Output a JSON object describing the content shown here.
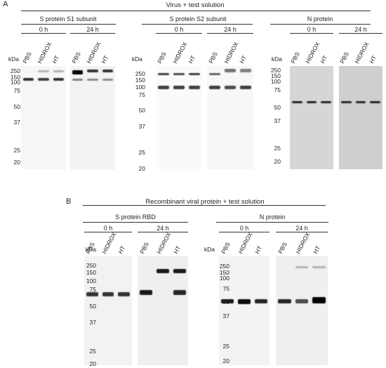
{
  "figure": {
    "panels": [
      {
        "letter": "A",
        "title": "Virus + test solution",
        "blots": [
          {
            "name": "S protein S1 subunit",
            "time_points": [
              "0 h",
              "24 h"
            ],
            "lanes": [
              "PBS",
              "HIDROX",
              "HT"
            ],
            "kda_label": "kDa",
            "markers": [
              "250",
              "150",
              "100",
              "75",
              "50",
              "37",
              "25",
              "20"
            ]
          },
          {
            "name": "S protein S2 subunit",
            "time_points": [
              "0 h",
              "24 h"
            ],
            "lanes": [
              "PBS",
              "HIDROX",
              "HT"
            ],
            "kda_label": "kDa",
            "markers": [
              "250",
              "150",
              "100",
              "75",
              "50",
              "37",
              "25",
              "20"
            ]
          },
          {
            "name": "N protein",
            "time_points": [
              "0 h",
              "24 h"
            ],
            "lanes": [
              "PBS",
              "HIDROX",
              "HT"
            ],
            "kda_label": "kDa",
            "markers": [
              "250",
              "150",
              "100",
              "75",
              "50",
              "37",
              "25",
              "20"
            ]
          }
        ]
      },
      {
        "letter": "B",
        "title": "Recombinant viral protein + test solution",
        "blots": [
          {
            "name": "S protein RBD",
            "time_points": [
              "0 h",
              "24 h"
            ],
            "lanes": [
              "PBS",
              "HIDROX",
              "HT"
            ],
            "kda_label": "kDa",
            "markers": [
              "250",
              "150",
              "100",
              "75",
              "50",
              "37",
              "25",
              "20"
            ]
          },
          {
            "name": "N protein",
            "time_points": [
              "0 h",
              "24 h"
            ],
            "lanes": [
              "PBS",
              "HIDROX",
              "HT"
            ],
            "kda_label": "kDa",
            "markers": [
              "250",
              "150",
              "100",
              "75",
              "50",
              "37",
              "25",
              "20"
            ]
          }
        ]
      }
    ]
  }
}
